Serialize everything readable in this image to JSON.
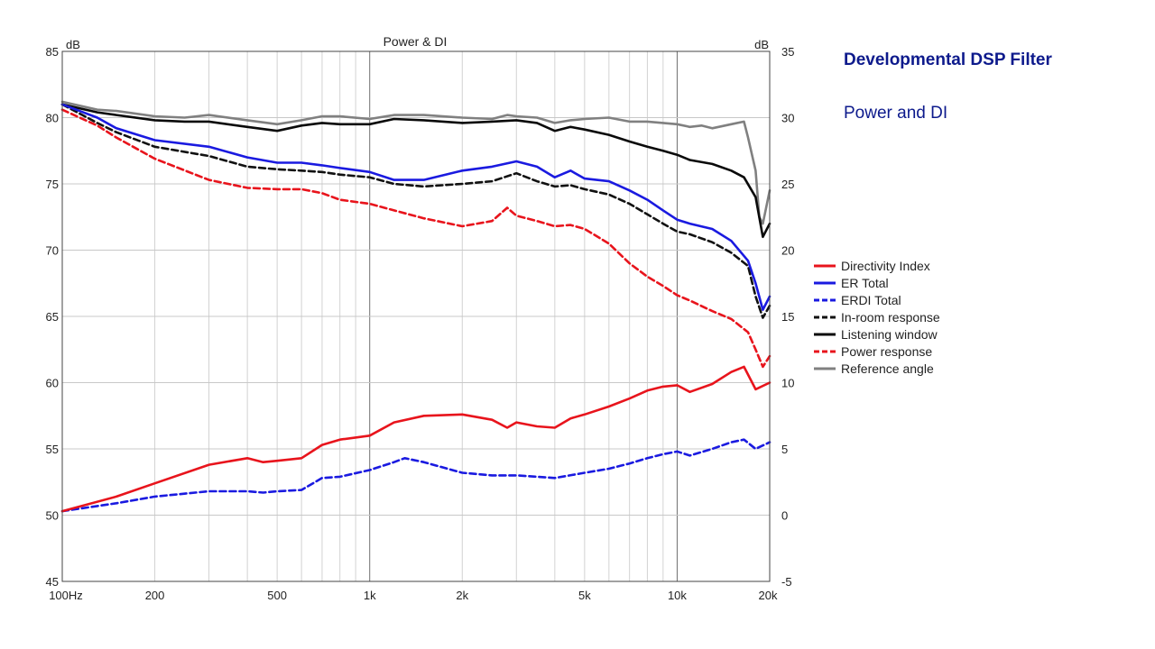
{
  "slide": {
    "title": "Developmental DSP Filter",
    "subtitle": "Power and DI"
  },
  "chart_data": {
    "type": "line",
    "title": "Power & DI",
    "xscale": "log",
    "xlim": [
      100,
      20000
    ],
    "ylim_left": [
      45,
      85
    ],
    "ylim_right": [
      -5,
      35
    ],
    "left_unit": "dB",
    "right_unit": "dB",
    "grid": true,
    "legend_position": "right",
    "x_ticks": [
      {
        "v": 100,
        "label": "100Hz"
      },
      {
        "v": 200,
        "label": "200"
      },
      {
        "v": 500,
        "label": "500"
      },
      {
        "v": 1000,
        "label": "1k"
      },
      {
        "v": 2000,
        "label": "2k"
      },
      {
        "v": 5000,
        "label": "5k"
      },
      {
        "v": 10000,
        "label": "10k"
      },
      {
        "v": 20000,
        "label": "20k"
      }
    ],
    "y_ticks_left": [
      45,
      50,
      55,
      60,
      65,
      70,
      75,
      80,
      85
    ],
    "y_ticks_right": [
      -5,
      0,
      5,
      10,
      15,
      20,
      25,
      30,
      35
    ],
    "series": [
      {
        "name": "Directivity Index",
        "color": "#e8141c",
        "dash": false,
        "axis": "right",
        "x": [
          100,
          150,
          200,
          300,
          400,
          450,
          500,
          600,
          700,
          800,
          1000,
          1200,
          1500,
          2000,
          2500,
          2800,
          3000,
          3500,
          4000,
          4500,
          5000,
          6000,
          7000,
          8000,
          9000,
          10000,
          11000,
          13000,
          15000,
          16500,
          18000,
          20000
        ],
        "y": [
          0.3,
          1.4,
          2.4,
          3.8,
          4.3,
          4.0,
          4.1,
          4.3,
          5.3,
          5.7,
          6.0,
          7.0,
          7.5,
          7.6,
          7.2,
          6.6,
          7.0,
          6.7,
          6.6,
          7.3,
          7.6,
          8.2,
          8.8,
          9.4,
          9.7,
          9.8,
          9.3,
          9.9,
          10.8,
          11.2,
          9.5,
          10.0
        ]
      },
      {
        "name": "ER Total",
        "color": "#1a1ae0",
        "dash": false,
        "axis": "left",
        "x": [
          100,
          130,
          150,
          200,
          300,
          400,
          500,
          600,
          700,
          800,
          1000,
          1200,
          1500,
          2000,
          2500,
          3000,
          3500,
          4000,
          4500,
          5000,
          6000,
          7000,
          8000,
          9000,
          10000,
          11000,
          13000,
          15000,
          17000,
          18000,
          19000,
          20000
        ],
        "y": [
          81.0,
          80.0,
          79.2,
          78.3,
          77.8,
          77.0,
          76.6,
          76.6,
          76.4,
          76.2,
          75.9,
          75.3,
          75.3,
          76.0,
          76.3,
          76.7,
          76.3,
          75.5,
          76.0,
          75.4,
          75.2,
          74.5,
          73.8,
          73.0,
          72.3,
          72.0,
          71.6,
          70.7,
          69.2,
          67.5,
          65.5,
          66.5
        ]
      },
      {
        "name": "ERDI Total",
        "color": "#1a1ae0",
        "dash": true,
        "axis": "right",
        "x": [
          100,
          150,
          200,
          300,
          400,
          450,
          500,
          600,
          700,
          800,
          1000,
          1200,
          1300,
          1500,
          2000,
          2500,
          3000,
          3500,
          4000,
          5000,
          6000,
          7000,
          8000,
          9000,
          10000,
          11000,
          13000,
          15000,
          16500,
          18000,
          20000
        ],
        "y": [
          0.3,
          0.9,
          1.4,
          1.8,
          1.8,
          1.7,
          1.8,
          1.9,
          2.8,
          2.9,
          3.4,
          4.0,
          4.3,
          4.0,
          3.2,
          3.0,
          3.0,
          2.9,
          2.8,
          3.2,
          3.5,
          3.9,
          4.3,
          4.6,
          4.8,
          4.5,
          5.0,
          5.5,
          5.7,
          5.0,
          5.5
        ]
      },
      {
        "name": "In-room response",
        "color": "#111111",
        "dash": true,
        "axis": "left",
        "x": [
          100,
          130,
          150,
          200,
          300,
          400,
          500,
          600,
          700,
          800,
          1000,
          1200,
          1500,
          2000,
          2500,
          3000,
          3500,
          4000,
          4500,
          5000,
          6000,
          7000,
          8000,
          9000,
          10000,
          11000,
          13000,
          15000,
          17000,
          18000,
          19000,
          20000
        ],
        "y": [
          81.0,
          79.6,
          78.9,
          77.8,
          77.1,
          76.3,
          76.1,
          76.0,
          75.9,
          75.7,
          75.5,
          75.0,
          74.8,
          75.0,
          75.2,
          75.8,
          75.2,
          74.8,
          74.9,
          74.6,
          74.2,
          73.5,
          72.7,
          72.0,
          71.4,
          71.2,
          70.6,
          69.8,
          68.8,
          66.5,
          64.9,
          65.8
        ]
      },
      {
        "name": "Listening window",
        "color": "#0a0a0a",
        "dash": false,
        "axis": "left",
        "x": [
          100,
          130,
          150,
          200,
          250,
          300,
          400,
          500,
          600,
          700,
          800,
          1000,
          1200,
          1500,
          2000,
          2500,
          3000,
          3500,
          4000,
          4500,
          5000,
          6000,
          7000,
          8000,
          9000,
          10000,
          11000,
          13000,
          15000,
          16500,
          18000,
          19000,
          20000
        ],
        "y": [
          81.0,
          80.4,
          80.2,
          79.8,
          79.7,
          79.7,
          79.3,
          79.0,
          79.4,
          79.6,
          79.5,
          79.5,
          79.9,
          79.8,
          79.6,
          79.7,
          79.8,
          79.6,
          79.0,
          79.3,
          79.1,
          78.7,
          78.2,
          77.8,
          77.5,
          77.2,
          76.8,
          76.5,
          76.0,
          75.5,
          74.0,
          71.0,
          72.0
        ]
      },
      {
        "name": "Power response",
        "color": "#e8141c",
        "dash": true,
        "axis": "left",
        "x": [
          100,
          130,
          150,
          200,
          300,
          400,
          500,
          600,
          700,
          800,
          1000,
          1200,
          1500,
          2000,
          2500,
          2800,
          3000,
          3500,
          4000,
          4500,
          5000,
          6000,
          7000,
          8000,
          9000,
          10000,
          11000,
          13000,
          15000,
          17000,
          18000,
          19000,
          20000
        ],
        "y": [
          80.6,
          79.4,
          78.5,
          76.9,
          75.3,
          74.7,
          74.6,
          74.6,
          74.3,
          73.8,
          73.5,
          73.0,
          72.4,
          71.8,
          72.2,
          73.2,
          72.6,
          72.2,
          71.8,
          71.9,
          71.6,
          70.5,
          69.0,
          68.0,
          67.3,
          66.6,
          66.2,
          65.4,
          64.8,
          63.8,
          62.5,
          61.2,
          62.0
        ]
      },
      {
        "name": "Reference angle",
        "color": "#808080",
        "dash": false,
        "axis": "left",
        "x": [
          100,
          130,
          150,
          200,
          250,
          300,
          400,
          500,
          600,
          700,
          800,
          1000,
          1200,
          1500,
          2000,
          2500,
          2800,
          3000,
          3500,
          4000,
          4500,
          5000,
          6000,
          7000,
          8000,
          9000,
          10000,
          11000,
          12000,
          13000,
          15000,
          16500,
          17000,
          18000,
          18500,
          19000,
          20000
        ],
        "y": [
          81.2,
          80.6,
          80.5,
          80.1,
          80.0,
          80.2,
          79.8,
          79.5,
          79.8,
          80.1,
          80.1,
          79.9,
          80.2,
          80.2,
          80.0,
          79.9,
          80.2,
          80.1,
          80.0,
          79.6,
          79.8,
          79.9,
          80.0,
          79.7,
          79.7,
          79.6,
          79.5,
          79.3,
          79.4,
          79.2,
          79.5,
          79.7,
          78.5,
          76.0,
          72.5,
          72.0,
          74.5
        ]
      }
    ]
  }
}
